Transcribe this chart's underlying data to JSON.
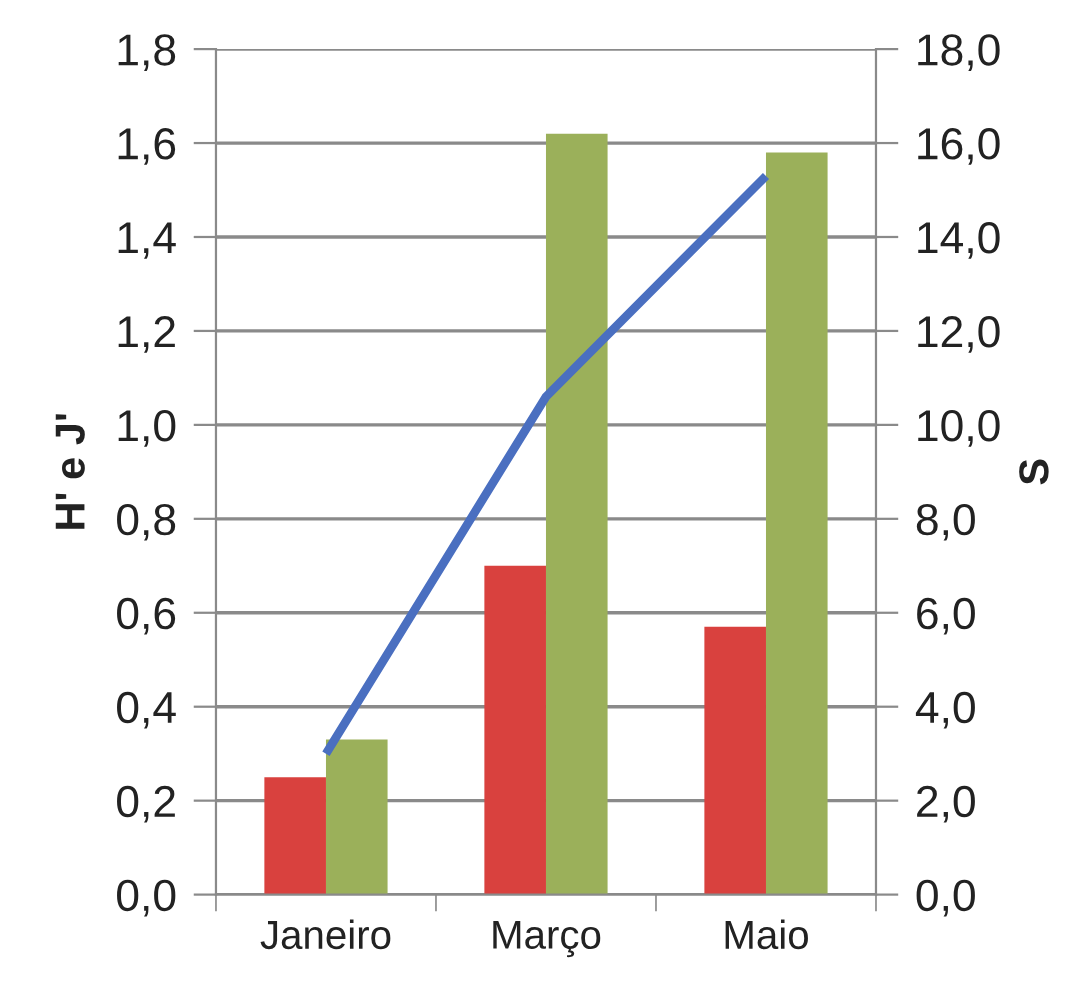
{
  "chart_data": {
    "type": "bar",
    "categories": [
      "Janeiro",
      "Março",
      "Maio"
    ],
    "series": [
      {
        "color": "#d9413e",
        "values": [
          0.25,
          0.7,
          0.57
        ]
      },
      {
        "color": "#9bb05a",
        "values": [
          0.33,
          1.62,
          1.58
        ]
      },
      {
        "type": "line",
        "axis": "y2",
        "color": "#4a6fc0",
        "values": [
          3.0,
          10.6,
          15.3
        ]
      }
    ],
    "ylabel": "H' e J'",
    "y2label": "S",
    "ylim": [
      0,
      1.8
    ],
    "yticks": [
      {
        "value": 0,
        "label": "0,0"
      },
      {
        "value": 0.2,
        "label": "0,2"
      },
      {
        "value": 0.4,
        "label": "0,4"
      },
      {
        "value": 0.6,
        "label": "0,6"
      },
      {
        "value": 0.8,
        "label": "0,8"
      },
      {
        "value": 1.0,
        "label": "1,0"
      },
      {
        "value": 1.2,
        "label": "1,2"
      },
      {
        "value": 1.4,
        "label": "1,4"
      },
      {
        "value": 1.6,
        "label": "1,6"
      },
      {
        "value": 1.8,
        "label": "1,8"
      }
    ],
    "y2lim": [
      0,
      18
    ],
    "y2ticks": [
      {
        "value": 0,
        "label": "0,0"
      },
      {
        "value": 2,
        "label": "2,0"
      },
      {
        "value": 4,
        "label": "4,0"
      },
      {
        "value": 6,
        "label": "6,0"
      },
      {
        "value": 8,
        "label": "8,0"
      },
      {
        "value": 10,
        "label": "10,0"
      },
      {
        "value": 12,
        "label": "12,0"
      },
      {
        "value": 14,
        "label": "14,0"
      },
      {
        "value": 16,
        "label": "16,0"
      },
      {
        "value": 18,
        "label": "18,0"
      }
    ],
    "grid": "y",
    "line_style": "solid"
  }
}
